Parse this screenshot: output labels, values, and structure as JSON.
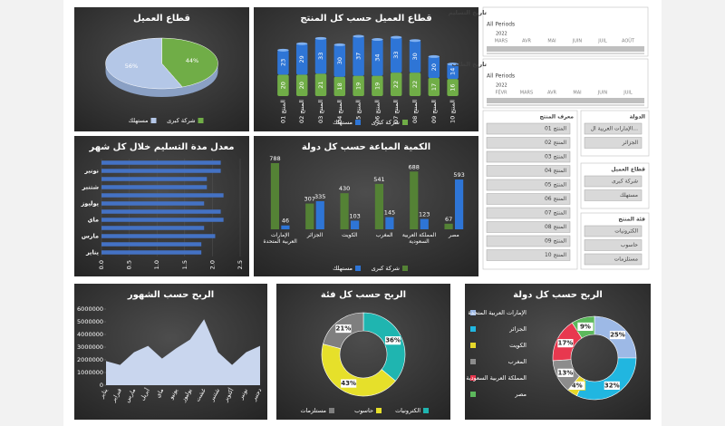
{
  "chart_data": [
    {
      "type": "pie",
      "title": "قطاع العميل",
      "categories": [
        "شركة كبرى",
        "مستهلك"
      ],
      "values": [
        44,
        56
      ],
      "value_labels": [
        "44%",
        "56%"
      ],
      "colors": [
        "#70ad47",
        "#b4c7e7"
      ]
    },
    {
      "type": "stacked",
      "title": "قطاع العميل حسب كل المنتج",
      "categories": [
        "المنتج 01",
        "المنتج 02",
        "المنتج 03",
        "المنتج 04",
        "المنتج 05",
        "المنتج 06",
        "المنتج 07",
        "المنتج 08",
        "المنتج 09",
        "المنتج 10"
      ],
      "series": [
        {
          "name": "شركة كبرى",
          "color": "#70ad47",
          "values": [
            20,
            20,
            21,
            18,
            19,
            19,
            22,
            22,
            17,
            16
          ]
        },
        {
          "name": "مستهلك",
          "color": "#2e75d6",
          "values": [
            23,
            29,
            33,
            30,
            37,
            34,
            33,
            30,
            20,
            14
          ]
        }
      ]
    },
    {
      "type": "hbar",
      "title": "معدل مدة التسليم خلال كل شهر",
      "categories": [
        "يناير",
        null,
        "مارس",
        null,
        "ماي",
        null,
        "يوليوز",
        null,
        "شتنبر",
        null,
        "نونبر",
        null
      ],
      "values": [
        1.8,
        1.8,
        2.05,
        1.85,
        2.2,
        2.15,
        1.85,
        2.2,
        1.9,
        1.9,
        2.15,
        2.15
      ],
      "color": "#4472c4",
      "xlim": [
        0,
        2.5
      ],
      "xticks": [
        {
          "value": 0,
          "label": "0.0"
        },
        0.5,
        {
          "value": 1,
          "label": "1.0"
        },
        1.5,
        {
          "value": 2,
          "label": "2.0"
        },
        2.5
      ]
    },
    {
      "type": "grouped",
      "title": "الكمية المباعة حسب كل دولة",
      "categories": [
        "الإمارات العربية المتحدة",
        "الجزائر",
        "الكويت",
        "المغرب",
        "المملكة العربية السعودية",
        "مصر"
      ],
      "series": [
        {
          "name": "شركة كبرى",
          "color": "#548235",
          "values": [
            788,
            307,
            430,
            541,
            688,
            67
          ]
        },
        {
          "name": "مستهلك",
          "color": "#2e75d6",
          "values": [
            46,
            335,
            103,
            145,
            123,
            593
          ]
        }
      ]
    },
    {
      "type": "area",
      "title": "الربح حسب الشهور",
      "categories": [
        "يناير",
        "فبراير",
        "مارس",
        "أبريل",
        "ماي",
        "يونيو",
        "يوليوز",
        "غشت",
        "شتنبر",
        "أكتوبر",
        "نونبر",
        "دجنبر"
      ],
      "values": [
        1900000,
        1600000,
        2600000,
        3100000,
        2100000,
        2900000,
        3600000,
        5200000,
        2600000,
        1600000,
        2600000,
        3100000
      ],
      "color": "#c9d6ee",
      "ylim": [
        0,
        6000000
      ],
      "yticks": [
        0,
        1000000,
        2000000,
        3000000,
        4000000,
        5000000,
        6000000
      ]
    },
    {
      "type": "donut",
      "title": "الربح حسب كل فئة",
      "categories": [
        "الكترونيات",
        "حاسوب",
        "مستلزمات"
      ],
      "values": [
        36,
        43,
        21
      ],
      "value_labels": [
        "36%",
        "43%",
        "21%"
      ],
      "colors": [
        "#1fb5b0",
        "#e6e02a",
        "#7f7f7f"
      ],
      "legend": "bottom"
    },
    {
      "type": "donut",
      "title": "الربح حسب كل دولة",
      "categories": [
        "الإمارات العربية المتحدة",
        "الجزائر",
        "الكويت",
        "المغرب",
        "المملكة العربية السعودية",
        "مصر"
      ],
      "values": [
        25,
        32,
        4,
        13,
        17,
        9
      ],
      "value_labels": [
        "25%",
        "32%",
        "4%",
        "13%",
        "17%",
        "9%"
      ],
      "colors": [
        "#9db9e6",
        "#21b6e0",
        "#e6d72a",
        "#8c8c8c",
        "#e8384f",
        "#5cb85c"
      ],
      "legend": "left"
    }
  ],
  "slicers": {
    "timelines": [
      {
        "title": "تاريخ التسليم",
        "periods": "All Periods",
        "year": "2022",
        "months": [
          "MARS",
          "AVR",
          "MAI",
          "JUIN",
          "JUIL",
          "AOÛT"
        ]
      },
      {
        "title": "تاريخ الطلب",
        "periods": "All Periods",
        "year": "2022",
        "months": [
          "FÉVR",
          "MARS",
          "AVR",
          "MAI",
          "JUIN",
          "JUIL"
        ]
      }
    ],
    "lists": [
      {
        "title": "معرف المنتج",
        "items": [
          "المنتج 01",
          "المنتج 02",
          "المنتج 03",
          "المنتج 04",
          "المنتج 05",
          "المنتج 06",
          "المنتج 07",
          "المنتج 08",
          "المنتج 09",
          "المنتج 10"
        ]
      },
      {
        "title": "الدولة",
        "items": [
          "الإمارات العربية ال...",
          "الجزائر"
        ]
      },
      {
        "title": "قطاع العميل",
        "items": [
          "شركة كبرى",
          "مستهلك"
        ]
      },
      {
        "title": "فئة المنتج",
        "items": [
          "الكترونيات",
          "حاسوب",
          "مستلزمات"
        ]
      }
    ]
  }
}
